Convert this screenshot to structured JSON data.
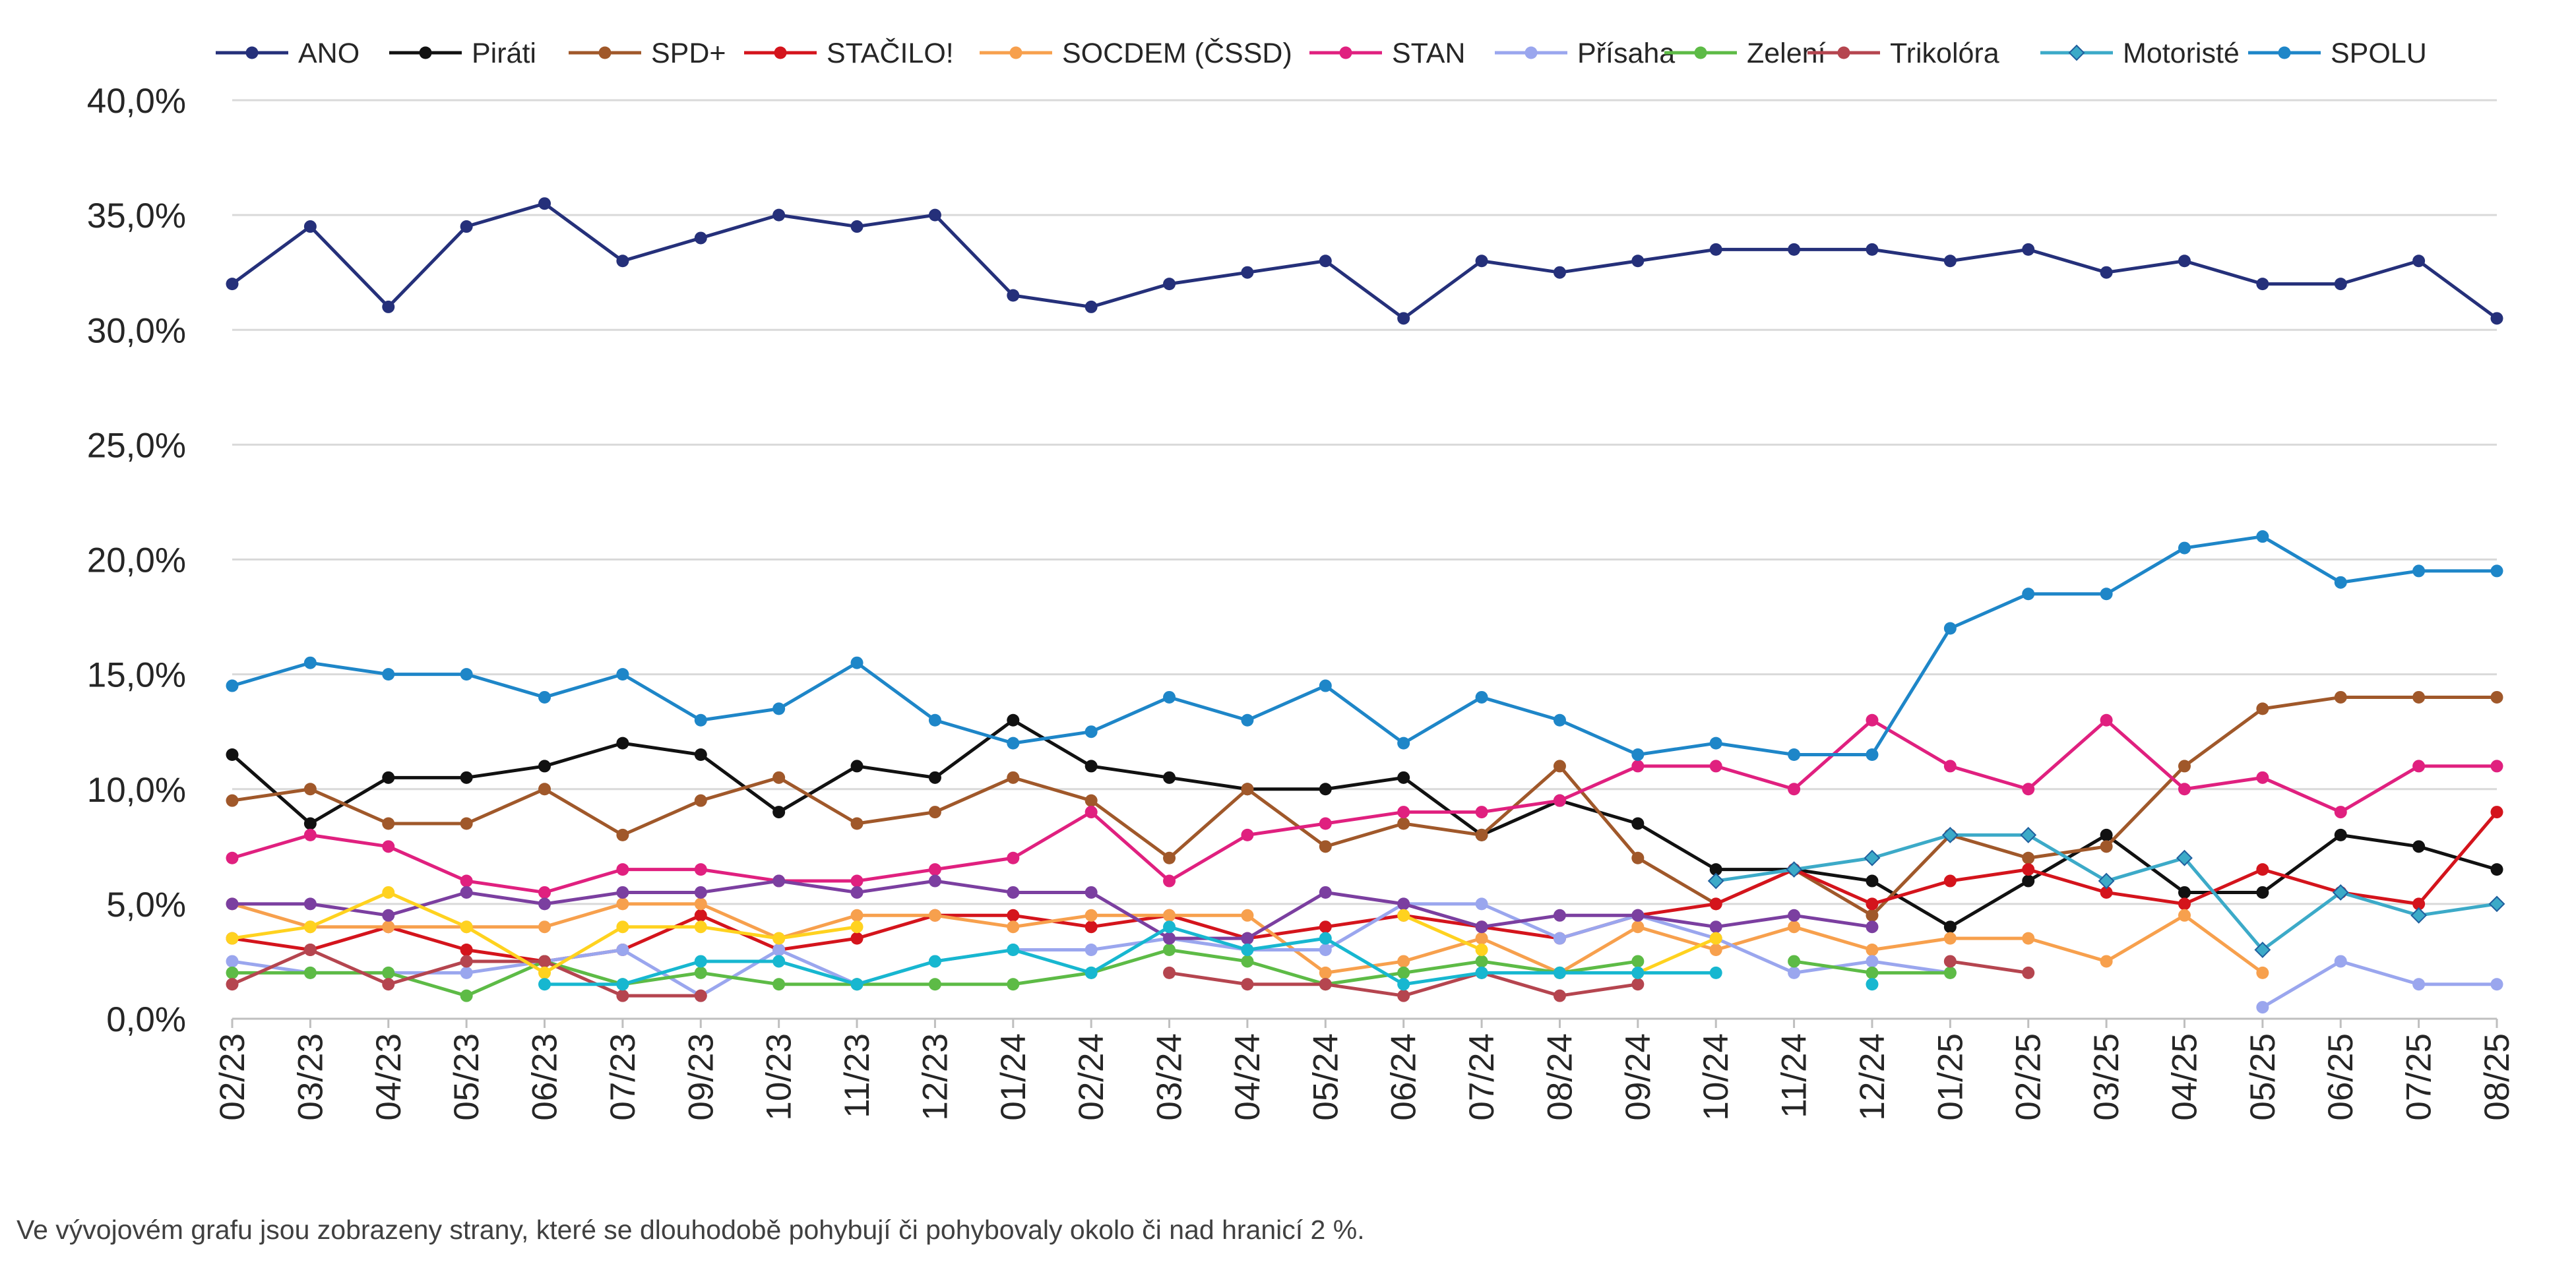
{
  "footnote": "Ve vývojovém grafu jsou zobrazeny strany, které se dlouhodobě pohybují či pohybovaly okolo či nad hranicí 2 %.",
  "chart_data": {
    "type": "line",
    "title": "",
    "xlabel": "",
    "ylabel": "",
    "ylim": [
      0,
      40
    ],
    "y_ticks": [
      "0,0%",
      "5,0%",
      "10,0%",
      "15,0%",
      "20,0%",
      "25,0%",
      "30,0%",
      "35,0%",
      "40,0%"
    ],
    "grid": "horizontal",
    "legend_position": "top",
    "categories": [
      "02/23",
      "03/23",
      "04/23",
      "05/23",
      "06/23",
      "07/23",
      "09/23",
      "10/23",
      "11/23",
      "12/23",
      "01/24",
      "02/24",
      "03/24",
      "04/24",
      "05/24",
      "06/24",
      "07/24",
      "08/24",
      "09/24",
      "10/24",
      "11/24",
      "12/24",
      "01/25",
      "02/25",
      "03/25",
      "04/25",
      "05/25",
      "06/25",
      "07/25",
      "08/25"
    ],
    "series": [
      {
        "name": "ANO",
        "color": "#25307a",
        "marker": "circle",
        "values": [
          32,
          34.5,
          31,
          34.5,
          35.5,
          33,
          34,
          35,
          34.5,
          35,
          31.5,
          31,
          32,
          32.5,
          33,
          30.5,
          33,
          32.5,
          33,
          33.5,
          33.5,
          33.5,
          33,
          33.5,
          32.5,
          33,
          32,
          32,
          33,
          30.5
        ]
      },
      {
        "name": "Piráti",
        "color": "#111111",
        "marker": "circle",
        "values": [
          11.5,
          8.5,
          10.5,
          10.5,
          11,
          12,
          11.5,
          9,
          11,
          10.5,
          13,
          11,
          10.5,
          10,
          10,
          10.5,
          8,
          9.5,
          8.5,
          6.5,
          6.5,
          6,
          4,
          6,
          8,
          5.5,
          5.5,
          8,
          7.5,
          6.5
        ]
      },
      {
        "name": "SPD+",
        "color": "#a0582a",
        "marker": "circle",
        "values": [
          9.5,
          10,
          8.5,
          8.5,
          10,
          8,
          9.5,
          10.5,
          8.5,
          9,
          10.5,
          9.5,
          7,
          10,
          7.5,
          8.5,
          8,
          11,
          7,
          5,
          6.5,
          4.5,
          8,
          7,
          7.5,
          11,
          13.5,
          14,
          14,
          14
        ]
      },
      {
        "name": "STAČILO!",
        "color": "#d4141c",
        "marker": "circle",
        "values": [
          3.5,
          3,
          4,
          3,
          2.5,
          3,
          4.5,
          3,
          3.5,
          4.5,
          4.5,
          4,
          4.5,
          3.5,
          4,
          4.5,
          4,
          3.5,
          4.5,
          5,
          6.5,
          5,
          6,
          6.5,
          5.5,
          5,
          6.5,
          5.5,
          5,
          9
        ]
      },
      {
        "name": "SOCDEM (ČSSD)",
        "color": "#f7a04d",
        "marker": "circle",
        "values": [
          5,
          4,
          4,
          4,
          4,
          5,
          5,
          3.5,
          4.5,
          4.5,
          4,
          4.5,
          4.5,
          4.5,
          2,
          2.5,
          3.5,
          2,
          4,
          3,
          4,
          3,
          3.5,
          3.5,
          2.5,
          4.5,
          2,
          null,
          null,
          null
        ]
      },
      {
        "name": "STAN",
        "color": "#e0207f",
        "marker": "circle",
        "values": [
          7,
          8,
          7.5,
          6,
          5.5,
          6.5,
          6.5,
          6,
          6,
          6.5,
          7,
          9,
          6,
          8,
          8.5,
          9,
          9,
          9.5,
          11,
          11,
          10,
          13,
          11,
          10,
          13,
          10,
          10.5,
          9,
          11,
          11
        ]
      },
      {
        "name": "Přísaha",
        "color": "#9aa6ee",
        "marker": "circle",
        "values": [
          2.5,
          2,
          2,
          2,
          2.5,
          3,
          1,
          3,
          1.5,
          2.5,
          3,
          3,
          3.5,
          3,
          3,
          5,
          5,
          3.5,
          4.5,
          3.5,
          2,
          2.5,
          2,
          null,
          null,
          null,
          0.5,
          2.5,
          1.5,
          1.5
        ]
      },
      {
        "name": "Zelení",
        "color": "#5dbb46",
        "marker": "circle",
        "values": [
          2,
          2,
          2,
          1,
          2.5,
          1.5,
          2,
          1.5,
          1.5,
          1.5,
          1.5,
          2,
          3,
          2.5,
          1.5,
          2,
          2.5,
          2,
          2.5,
          null,
          2.5,
          2,
          2,
          null,
          null,
          null,
          null,
          null,
          null,
          null
        ]
      },
      {
        "name": "Trikolóra",
        "color": "#b5454f",
        "marker": "circle",
        "values": [
          1.5,
          3,
          1.5,
          2.5,
          2.5,
          1,
          1,
          null,
          null,
          null,
          null,
          null,
          2,
          1.5,
          1.5,
          1,
          2,
          1,
          1.5,
          null,
          null,
          null,
          2.5,
          2,
          null,
          null,
          null,
          null,
          null,
          null
        ]
      },
      {
        "name": "Motoristé",
        "color": "#3caac8",
        "marker": "diamond",
        "values": [
          null,
          null,
          null,
          null,
          null,
          null,
          null,
          null,
          null,
          null,
          null,
          null,
          null,
          null,
          null,
          null,
          null,
          null,
          null,
          6,
          6.5,
          7,
          8,
          8,
          6,
          7,
          3,
          5.5,
          4.5,
          5
        ]
      },
      {
        "name": "SPOLU",
        "color": "#1e86c8",
        "marker": "circle",
        "values": [
          14.5,
          15.5,
          15,
          15,
          14,
          15,
          13,
          13.5,
          15.5,
          13,
          12,
          12.5,
          14,
          13,
          14.5,
          12,
          14,
          13,
          11.5,
          12,
          11.5,
          11.5,
          17,
          18.5,
          18.5,
          20.5,
          21,
          19,
          19.5,
          19.5
        ]
      },
      {
        "name": "",
        "color": "#7b3fa0",
        "marker": "circle",
        "values": [
          5,
          5,
          4.5,
          5.5,
          5,
          5.5,
          5.5,
          6,
          5.5,
          6,
          5.5,
          5.5,
          3.5,
          3.5,
          5.5,
          5,
          4,
          4.5,
          4.5,
          4,
          4.5,
          4,
          null,
          null,
          null,
          null,
          null,
          null,
          null,
          null
        ]
      },
      {
        "name": "",
        "color": "#ffd21f",
        "marker": "circle",
        "values": [
          3.5,
          4,
          5.5,
          4,
          2,
          4,
          4,
          3.5,
          4,
          null,
          null,
          null,
          null,
          null,
          null,
          4.5,
          3,
          null,
          2,
          3.5,
          null,
          null,
          null,
          null,
          null,
          null,
          null,
          null,
          null,
          null
        ]
      },
      {
        "name": "",
        "color": "#17b7d0",
        "marker": "circle",
        "values": [
          null,
          null,
          null,
          null,
          1.5,
          1.5,
          2.5,
          2.5,
          1.5,
          2.5,
          3,
          2,
          4,
          3,
          3.5,
          1.5,
          2,
          2,
          2,
          2,
          null,
          1.5,
          null,
          null,
          null,
          null,
          null,
          null,
          null,
          null
        ]
      }
    ]
  }
}
